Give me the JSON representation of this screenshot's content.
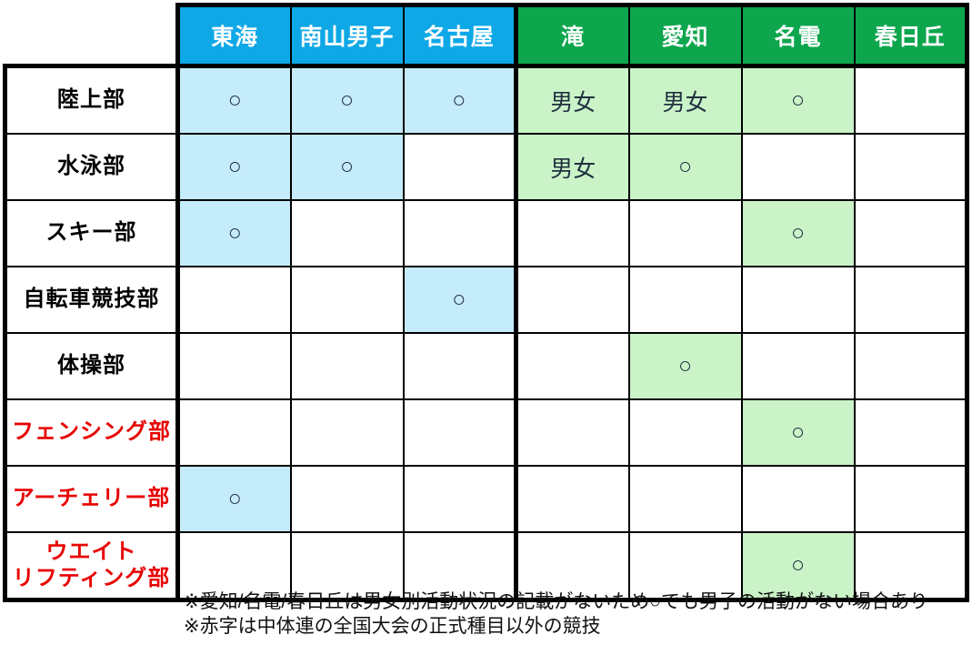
{
  "chart_data": {
    "type": "table",
    "title": "",
    "columns": [
      "東海",
      "南山男子",
      "名古屋",
      "滝",
      "愛知",
      "名電",
      "春日丘"
    ],
    "column_groups": [
      "blue",
      "blue",
      "blue",
      "green",
      "green",
      "green",
      "green"
    ],
    "rows": [
      {
        "label": "陸上部",
        "label_style": "black",
        "cells": [
          "○",
          "○",
          "○",
          "男女",
          "男女",
          "○",
          ""
        ]
      },
      {
        "label": "水泳部",
        "label_style": "black",
        "cells": [
          "○",
          "○",
          "",
          "男女",
          "○",
          "",
          ""
        ]
      },
      {
        "label": "スキー部",
        "label_style": "black",
        "cells": [
          "○",
          "",
          "",
          "",
          "",
          "○",
          ""
        ]
      },
      {
        "label": "自転車競技部",
        "label_style": "black",
        "cells": [
          "",
          "",
          "○",
          "",
          "",
          "",
          ""
        ]
      },
      {
        "label": "体操部",
        "label_style": "black",
        "cells": [
          "",
          "",
          "",
          "",
          "○",
          "",
          ""
        ]
      },
      {
        "label": "フェンシング部",
        "label_style": "red",
        "cells": [
          "",
          "",
          "",
          "",
          "",
          "○",
          ""
        ]
      },
      {
        "label": "アーチェリー部",
        "label_style": "red",
        "cells": [
          "○",
          "",
          "",
          "",
          "",
          "",
          ""
        ]
      },
      {
        "label": "ウエイト\nリフティング部",
        "label_style": "red",
        "cells": [
          "",
          "",
          "",
          "",
          "",
          "○",
          ""
        ]
      }
    ],
    "marks": {
      "active": "○",
      "both_genders": "男女"
    },
    "legend_position": "none",
    "grid": true
  },
  "notes": [
    "※愛知/名電/春日丘は男女別活動状況の記載がないため○でも男子の活動がない場合あり",
    "※赤字は中体連の全国大会の正式種目以外の競技"
  ],
  "colors": {
    "header_blue": "#0FA8E6",
    "header_green": "#0EA64D",
    "cell_light_blue": "#C5ECFB",
    "cell_light_green": "#CAF3C8",
    "red_label_text": "#E80000",
    "border": "#000000",
    "background": "#FFFFFF"
  }
}
